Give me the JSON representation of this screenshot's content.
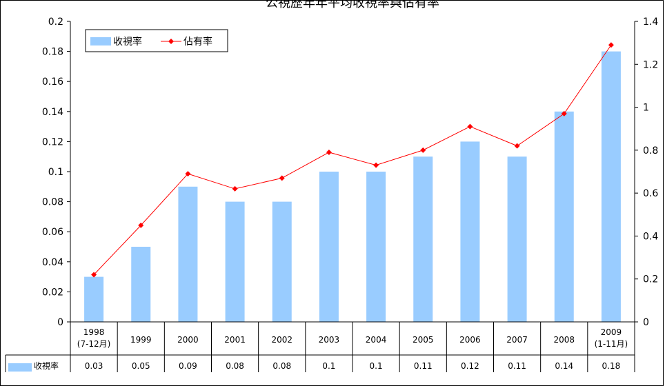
{
  "chart_data": {
    "type": "bar+line",
    "title": "公視歷年年平均收視率與佔有率",
    "categories": [
      "1998\n(7-12月)",
      "1999",
      "2000",
      "2001",
      "2002",
      "2003",
      "2004",
      "2005",
      "2006",
      "2007",
      "2008",
      "2009\n(1-11月)"
    ],
    "series": [
      {
        "name": "收視率",
        "type": "bar",
        "axis": "left",
        "color": "#99ccff",
        "values": [
          0.03,
          0.05,
          0.09,
          0.08,
          0.08,
          0.1,
          0.1,
          0.11,
          0.12,
          0.11,
          0.14,
          0.18
        ]
      },
      {
        "name": "佔有率",
        "type": "line",
        "axis": "right",
        "color": "#ff0000",
        "values": [
          0.22,
          0.45,
          0.69,
          0.62,
          0.67,
          0.79,
          0.73,
          0.8,
          0.91,
          0.82,
          0.97,
          1.29
        ]
      }
    ],
    "ylim_left": [
      0,
      0.2
    ],
    "yticks_left": [
      "0",
      "0.02",
      "0.04",
      "0.06",
      "0.08",
      "0.1",
      "0.12",
      "0.14",
      "0.16",
      "0.18",
      "0.2"
    ],
    "ylim_right": [
      0,
      1.4
    ],
    "yticks_right": [
      "0",
      "0.2",
      "0.4",
      "0.6",
      "0.8",
      "1",
      "1.2",
      "1.4"
    ],
    "legend": "top-left",
    "data_table": true,
    "grid": false
  }
}
